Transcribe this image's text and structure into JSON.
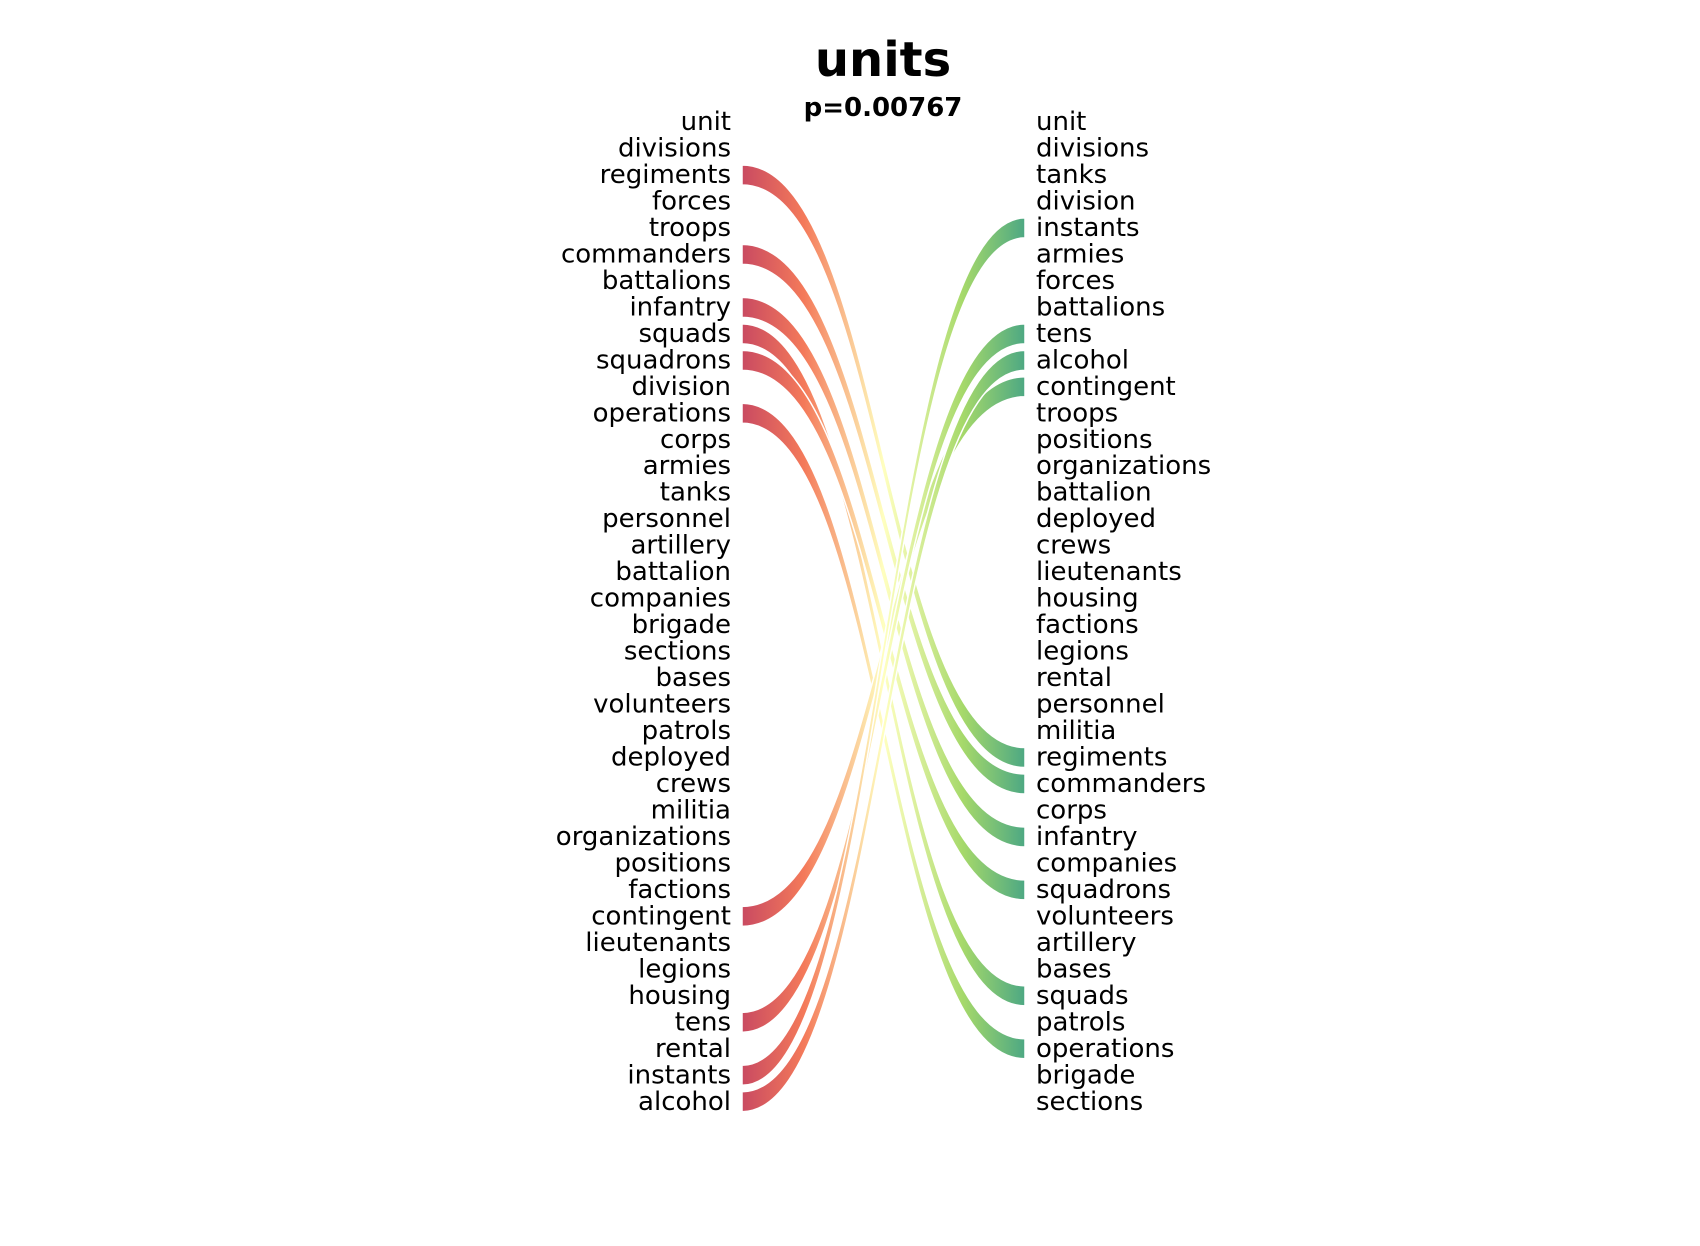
{
  "chart_data": {
    "type": "bump",
    "title": "units",
    "subtitle": "p=0.00767",
    "left_words": [
      "unit",
      "divisions",
      "regiments",
      "forces",
      "troops",
      "commanders",
      "battalions",
      "infantry",
      "squads",
      "squadrons",
      "division",
      "operations",
      "corps",
      "armies",
      "tanks",
      "personnel",
      "artillery",
      "battalion",
      "companies",
      "brigade",
      "sections",
      "bases",
      "volunteers",
      "patrols",
      "deployed",
      "crews",
      "militia",
      "organizations",
      "positions",
      "factions",
      "contingent",
      "lieutenants",
      "legions",
      "housing",
      "tens",
      "rental",
      "instants",
      "alcohol"
    ],
    "right_words": [
      "unit",
      "divisions",
      "tanks",
      "division",
      "instants",
      "armies",
      "forces",
      "battalions",
      "tens",
      "alcohol",
      "contingent",
      "troops",
      "positions",
      "organizations",
      "battalion",
      "deployed",
      "crews",
      "lieutenants",
      "housing",
      "factions",
      "legions",
      "rental",
      "personnel",
      "militia",
      "regiments",
      "commanders",
      "corps",
      "infantry",
      "companies",
      "squadrons",
      "volunteers",
      "artillery",
      "bases",
      "squads",
      "patrols",
      "operations",
      "brigade",
      "sections"
    ],
    "highlighted_drops": [
      "regiments",
      "commanders",
      "infantry",
      "squads",
      "squadrons",
      "operations"
    ],
    "highlighted_rises": [
      "contingent",
      "tens",
      "instants",
      "alcohol"
    ],
    "colors": {
      "drop_start": "#c94a61",
      "mid": "#ffffbf",
      "rise_end": "#4da883",
      "drop_band_mid": "#f47a5a",
      "rise_band_mid": "#a6d96a"
    }
  }
}
